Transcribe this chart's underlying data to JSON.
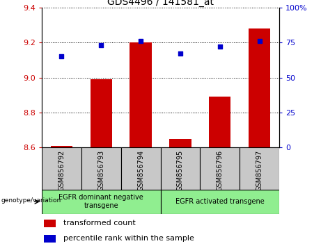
{
  "title": "GDS4496 / 141581_at",
  "categories": [
    "GSM856792",
    "GSM856793",
    "GSM856794",
    "GSM856795",
    "GSM856796",
    "GSM856797"
  ],
  "bar_values": [
    8.61,
    8.99,
    9.2,
    8.65,
    8.89,
    9.28
  ],
  "bar_bottom": 8.6,
  "scatter_values": [
    65,
    73,
    76,
    67,
    72,
    76
  ],
  "ylim_left": [
    8.6,
    9.4
  ],
  "ylim_right": [
    0,
    100
  ],
  "yticks_left": [
    8.6,
    8.8,
    9.0,
    9.2,
    9.4
  ],
  "yticks_right": [
    0,
    25,
    50,
    75,
    100
  ],
  "ytick_labels_right": [
    "0",
    "25",
    "50",
    "75",
    "100%"
  ],
  "bar_color": "#cc0000",
  "scatter_color": "#0000cc",
  "group1_label": "EGFR dominant negative\ntransgene",
  "group2_label": "EGFR activated transgene",
  "group1_indices": [
    0,
    1,
    2
  ],
  "group2_indices": [
    3,
    4,
    5
  ],
  "genotype_label": "genotype/variation",
  "legend_bar_label": "transformed count",
  "legend_scatter_label": "percentile rank within the sample",
  "group_bg_color": "#90ee90",
  "tick_bg_color": "#c8c8c8"
}
